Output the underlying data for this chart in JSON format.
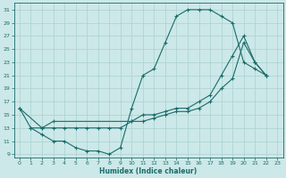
{
  "xlabel": "Humidex (Indice chaleur)",
  "bg_color": "#cce8e8",
  "line_color": "#1a6b6b",
  "grid_color": "#aad0d0",
  "xlim": [
    -0.5,
    23.5
  ],
  "ylim": [
    8.5,
    32.0
  ],
  "xticks": [
    0,
    1,
    2,
    3,
    4,
    5,
    6,
    7,
    8,
    9,
    10,
    11,
    12,
    13,
    14,
    15,
    16,
    17,
    18,
    19,
    20,
    21,
    22,
    23
  ],
  "yticks": [
    9,
    11,
    13,
    15,
    17,
    19,
    21,
    23,
    25,
    27,
    29,
    31
  ],
  "line1_x": [
    0,
    1,
    2,
    3,
    4,
    5,
    6,
    7,
    8,
    9,
    10,
    11,
    12,
    13,
    14,
    15,
    16,
    17,
    18,
    19,
    20,
    21,
    22
  ],
  "line1_y": [
    16,
    13,
    12,
    11,
    11,
    10,
    9.5,
    9.5,
    9,
    10,
    16,
    21,
    22,
    26,
    30,
    31,
    31,
    31,
    30,
    29,
    23,
    22,
    21
  ],
  "line2_x": [
    0,
    2,
    3,
    10,
    11,
    12,
    13,
    14,
    15,
    16,
    17,
    18,
    19,
    20,
    21,
    22
  ],
  "line2_y": [
    16,
    13,
    14,
    14,
    15,
    15,
    15.5,
    16,
    16,
    17,
    18,
    21,
    24,
    27,
    23,
    21
  ],
  "line3_x": [
    1,
    2,
    3,
    4,
    5,
    6,
    7,
    8,
    9,
    10,
    11,
    12,
    13,
    14,
    15,
    16,
    17,
    18,
    19,
    20,
    21,
    22
  ],
  "line3_y": [
    13,
    13,
    13,
    13,
    13,
    13,
    13,
    13,
    13,
    14,
    14,
    14.5,
    15,
    15.5,
    15.5,
    16,
    17,
    19,
    20.5,
    26,
    23,
    21
  ]
}
